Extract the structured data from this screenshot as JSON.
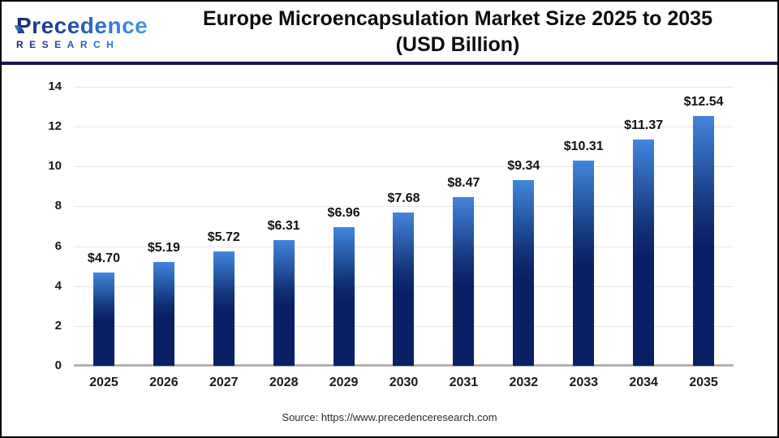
{
  "logo": {
    "brand": "Precedence",
    "sub": "RESEARCH"
  },
  "header": {
    "title_line1": "Europe Microencapsulation Market Size 2025 to 2035",
    "title_line2": "(USD Billion)"
  },
  "source": "Source: https://www.precedenceresearch.com",
  "colors": {
    "bar_gradient_top": "#4285dc",
    "bar_gradient_mid": "#123478",
    "bar_gradient_bottom": "#0a2065",
    "grid": "#e7e7e7",
    "axis_line": "#b3b3b3",
    "header_rule": "#171754",
    "brand_navy": "#1c2a72",
    "brand_blue": "#4a9ae2",
    "text": "#111111"
  },
  "chart_data": {
    "type": "bar",
    "title": "Europe Microencapsulation Market Size 2025 to 2035 (USD Billion)",
    "categories": [
      "2025",
      "2026",
      "2027",
      "2028",
      "2029",
      "2030",
      "2031",
      "2032",
      "2033",
      "2034",
      "2035"
    ],
    "values": [
      4.7,
      5.19,
      5.72,
      6.31,
      6.96,
      7.68,
      8.47,
      9.34,
      10.31,
      11.37,
      12.54
    ],
    "bar_labels": [
      "$4.70",
      "$5.19",
      "$5.72",
      "$6.31",
      "$6.96",
      "$7.68",
      "$8.47",
      "$9.34",
      "$10.31",
      "$11.37",
      "$12.54"
    ],
    "xlabel": "",
    "ylabel": "",
    "ylim": [
      0,
      14
    ],
    "yticks": [
      0,
      2,
      4,
      6,
      8,
      10,
      12,
      14
    ],
    "grid": true,
    "legend": false,
    "currency_prefix": "$"
  }
}
